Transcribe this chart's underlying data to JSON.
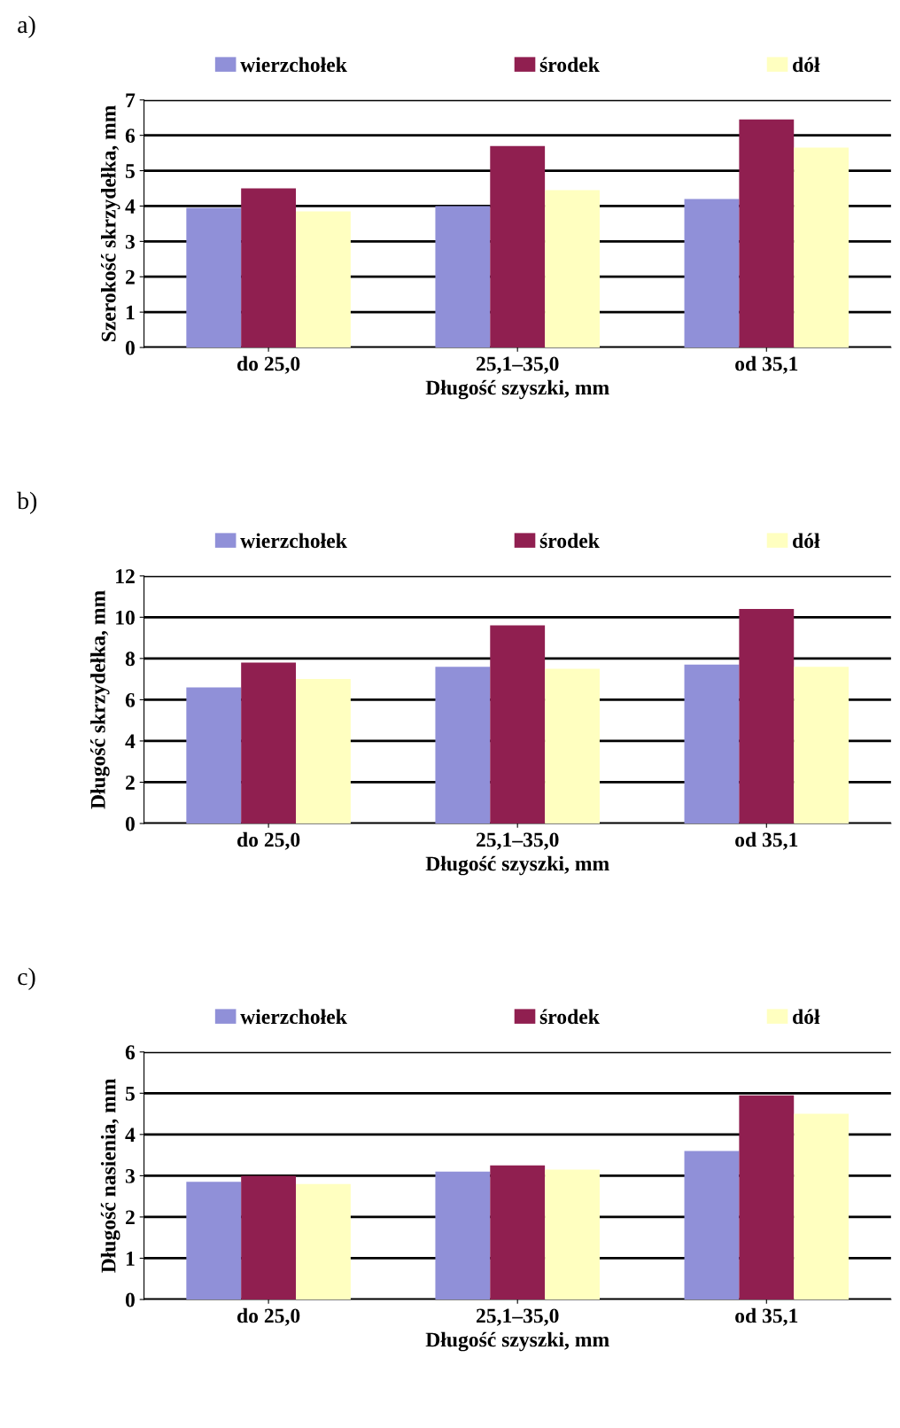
{
  "chart_data": [
    {
      "type": "bar",
      "title": "a)",
      "xlabel": "Długość szyszki, mm",
      "ylabel": "Szerokość skrzydełka, mm",
      "categories": [
        "do 25,0",
        "25,1–35,0",
        "od 35,1"
      ],
      "ylim": [
        0,
        7
      ],
      "yticks": [
        0,
        1,
        2,
        3,
        4,
        5,
        6,
        7
      ],
      "grid": "y",
      "legend": "top",
      "series": [
        {
          "name": "wierzchołek",
          "color": "#9090d8",
          "values": [
            3.95,
            4.0,
            4.2
          ]
        },
        {
          "name": "środek",
          "color": "#901f50",
          "values": [
            4.5,
            5.7,
            6.45
          ]
        },
        {
          "name": "dół",
          "color": "#ffffc0",
          "values": [
            3.85,
            4.45,
            5.65
          ]
        }
      ]
    },
    {
      "type": "bar",
      "title": "b)",
      "xlabel": "Długość szyszki, mm",
      "ylabel": "Długość skrzydełka, mm",
      "categories": [
        "do 25,0",
        "25,1–35,0",
        "od 35,1"
      ],
      "ylim": [
        0,
        12
      ],
      "yticks": [
        0,
        2,
        4,
        6,
        8,
        10,
        12
      ],
      "grid": "y",
      "legend": "top",
      "series": [
        {
          "name": "wierzchołek",
          "color": "#9090d8",
          "values": [
            6.6,
            7.6,
            7.7
          ]
        },
        {
          "name": "środek",
          "color": "#901f50",
          "values": [
            7.8,
            9.6,
            10.4
          ]
        },
        {
          "name": "dół",
          "color": "#ffffc0",
          "values": [
            7.0,
            7.5,
            7.6
          ]
        }
      ]
    },
    {
      "type": "bar",
      "title": "c)",
      "xlabel": "Długość szyszki, mm",
      "ylabel": "Długość nasienia, mm",
      "categories": [
        "do 25,0",
        "25,1–35,0",
        "od 35,1"
      ],
      "ylim": [
        0,
        6
      ],
      "yticks": [
        0,
        1,
        2,
        3,
        4,
        5,
        6
      ],
      "grid": "y",
      "legend": "top",
      "series": [
        {
          "name": "wierzchołek",
          "color": "#9090d8",
          "values": [
            2.85,
            3.1,
            3.6
          ]
        },
        {
          "name": "środek",
          "color": "#901f50",
          "values": [
            3.0,
            3.25,
            4.95
          ]
        },
        {
          "name": "dół",
          "color": "#ffffc0",
          "values": [
            2.8,
            3.15,
            4.5
          ]
        }
      ]
    }
  ]
}
